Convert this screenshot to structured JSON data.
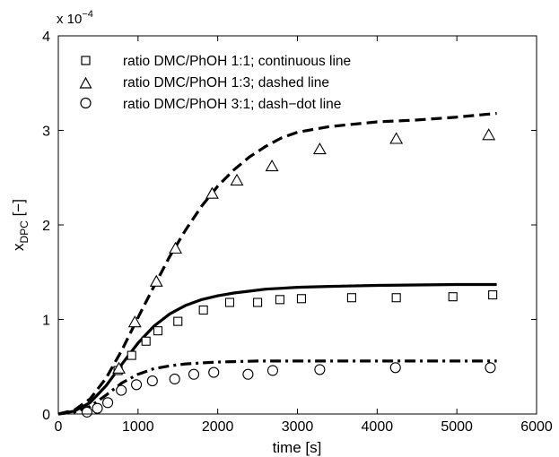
{
  "chart_data": {
    "type": "scatter",
    "xlabel": "time [s]",
    "ylabel": {
      "main": "x",
      "sub": "DPC",
      "unit": " [−]"
    },
    "y_exponent_label": {
      "base": "x 10",
      "exp": "−4"
    },
    "xlim": [
      0,
      6000
    ],
    "ylim": [
      0,
      4
    ],
    "x_ticks": [
      {
        "value": 0,
        "label": "0"
      },
      {
        "value": 1000,
        "label": "1000"
      },
      {
        "value": 2000,
        "label": "2000"
      },
      {
        "value": 3000,
        "label": "3000"
      },
      {
        "value": 4000,
        "label": "4000"
      },
      {
        "value": 5000,
        "label": "5000"
      },
      {
        "value": 6000,
        "label": "6000"
      }
    ],
    "y_ticks": [
      {
        "value": 0,
        "label": "0"
      },
      {
        "value": 1,
        "label": "1"
      },
      {
        "value": 2,
        "label": "2"
      },
      {
        "value": 3,
        "label": "3"
      },
      {
        "value": 4,
        "label": "4"
      }
    ],
    "grid": false,
    "legend_position": "top-left",
    "series": [
      {
        "name": "ratio DMC/PhOH 1:1; continuous line",
        "marker": "square",
        "line_style": "solid",
        "points": [
          [
            750,
            0.46
          ],
          [
            920,
            0.62
          ],
          [
            1100,
            0.77
          ],
          [
            1250,
            0.88
          ],
          [
            1500,
            0.98
          ],
          [
            1820,
            1.1
          ],
          [
            2150,
            1.18
          ],
          [
            2500,
            1.18
          ],
          [
            2780,
            1.21
          ],
          [
            3050,
            1.22
          ],
          [
            3680,
            1.23
          ],
          [
            4240,
            1.23
          ],
          [
            4950,
            1.24
          ],
          [
            5450,
            1.26
          ]
        ],
        "model": [
          [
            0,
            0
          ],
          [
            200,
            0.03
          ],
          [
            400,
            0.12
          ],
          [
            600,
            0.3
          ],
          [
            800,
            0.53
          ],
          [
            1000,
            0.75
          ],
          [
            1200,
            0.93
          ],
          [
            1400,
            1.06
          ],
          [
            1600,
            1.15
          ],
          [
            1800,
            1.21
          ],
          [
            2000,
            1.25
          ],
          [
            2200,
            1.28
          ],
          [
            2400,
            1.3
          ],
          [
            2600,
            1.32
          ],
          [
            2800,
            1.33
          ],
          [
            3000,
            1.34
          ],
          [
            3400,
            1.35
          ],
          [
            4000,
            1.36
          ],
          [
            5000,
            1.37
          ],
          [
            5500,
            1.37
          ]
        ]
      },
      {
        "name": "ratio DMC/PhOH 1:3; dashed line",
        "marker": "triangle",
        "line_style": "dashed",
        "points": [
          [
            760,
            0.48
          ],
          [
            960,
            0.97
          ],
          [
            1230,
            1.4
          ],
          [
            1470,
            1.75
          ],
          [
            1930,
            2.33
          ],
          [
            2240,
            2.47
          ],
          [
            2680,
            2.62
          ],
          [
            3280,
            2.8
          ],
          [
            4240,
            2.91
          ],
          [
            5400,
            2.95
          ]
        ],
        "model": [
          [
            0,
            0
          ],
          [
            200,
            0.04
          ],
          [
            400,
            0.16
          ],
          [
            600,
            0.38
          ],
          [
            800,
            0.68
          ],
          [
            1000,
            1.02
          ],
          [
            1200,
            1.35
          ],
          [
            1400,
            1.67
          ],
          [
            1600,
            1.95
          ],
          [
            1800,
            2.2
          ],
          [
            2000,
            2.41
          ],
          [
            2200,
            2.58
          ],
          [
            2400,
            2.72
          ],
          [
            2600,
            2.83
          ],
          [
            2800,
            2.92
          ],
          [
            3000,
            2.98
          ],
          [
            3400,
            3.04
          ],
          [
            4000,
            3.09
          ],
          [
            4500,
            3.11
          ],
          [
            5000,
            3.14
          ],
          [
            5500,
            3.18
          ]
        ]
      },
      {
        "name": "ratio DMC/PhOH 3:1; dash−dot line",
        "marker": "circle",
        "line_style": "dash-dot",
        "points": [
          [
            360,
            0.02
          ],
          [
            490,
            0.06
          ],
          [
            620,
            0.12
          ],
          [
            790,
            0.25
          ],
          [
            980,
            0.31
          ],
          [
            1180,
            0.35
          ],
          [
            1460,
            0.37
          ],
          [
            1700,
            0.42
          ],
          [
            1950,
            0.44
          ],
          [
            2380,
            0.42
          ],
          [
            2690,
            0.46
          ],
          [
            3280,
            0.47
          ],
          [
            4230,
            0.49
          ],
          [
            5420,
            0.49
          ]
        ],
        "model": [
          [
            0,
            0
          ],
          [
            200,
            0.02
          ],
          [
            400,
            0.08
          ],
          [
            600,
            0.2
          ],
          [
            800,
            0.33
          ],
          [
            1000,
            0.42
          ],
          [
            1200,
            0.48
          ],
          [
            1400,
            0.51
          ],
          [
            1600,
            0.53
          ],
          [
            1800,
            0.54
          ],
          [
            2000,
            0.55
          ],
          [
            2500,
            0.56
          ],
          [
            3000,
            0.56
          ],
          [
            4000,
            0.56
          ],
          [
            5000,
            0.56
          ],
          [
            5500,
            0.56
          ]
        ]
      }
    ]
  }
}
